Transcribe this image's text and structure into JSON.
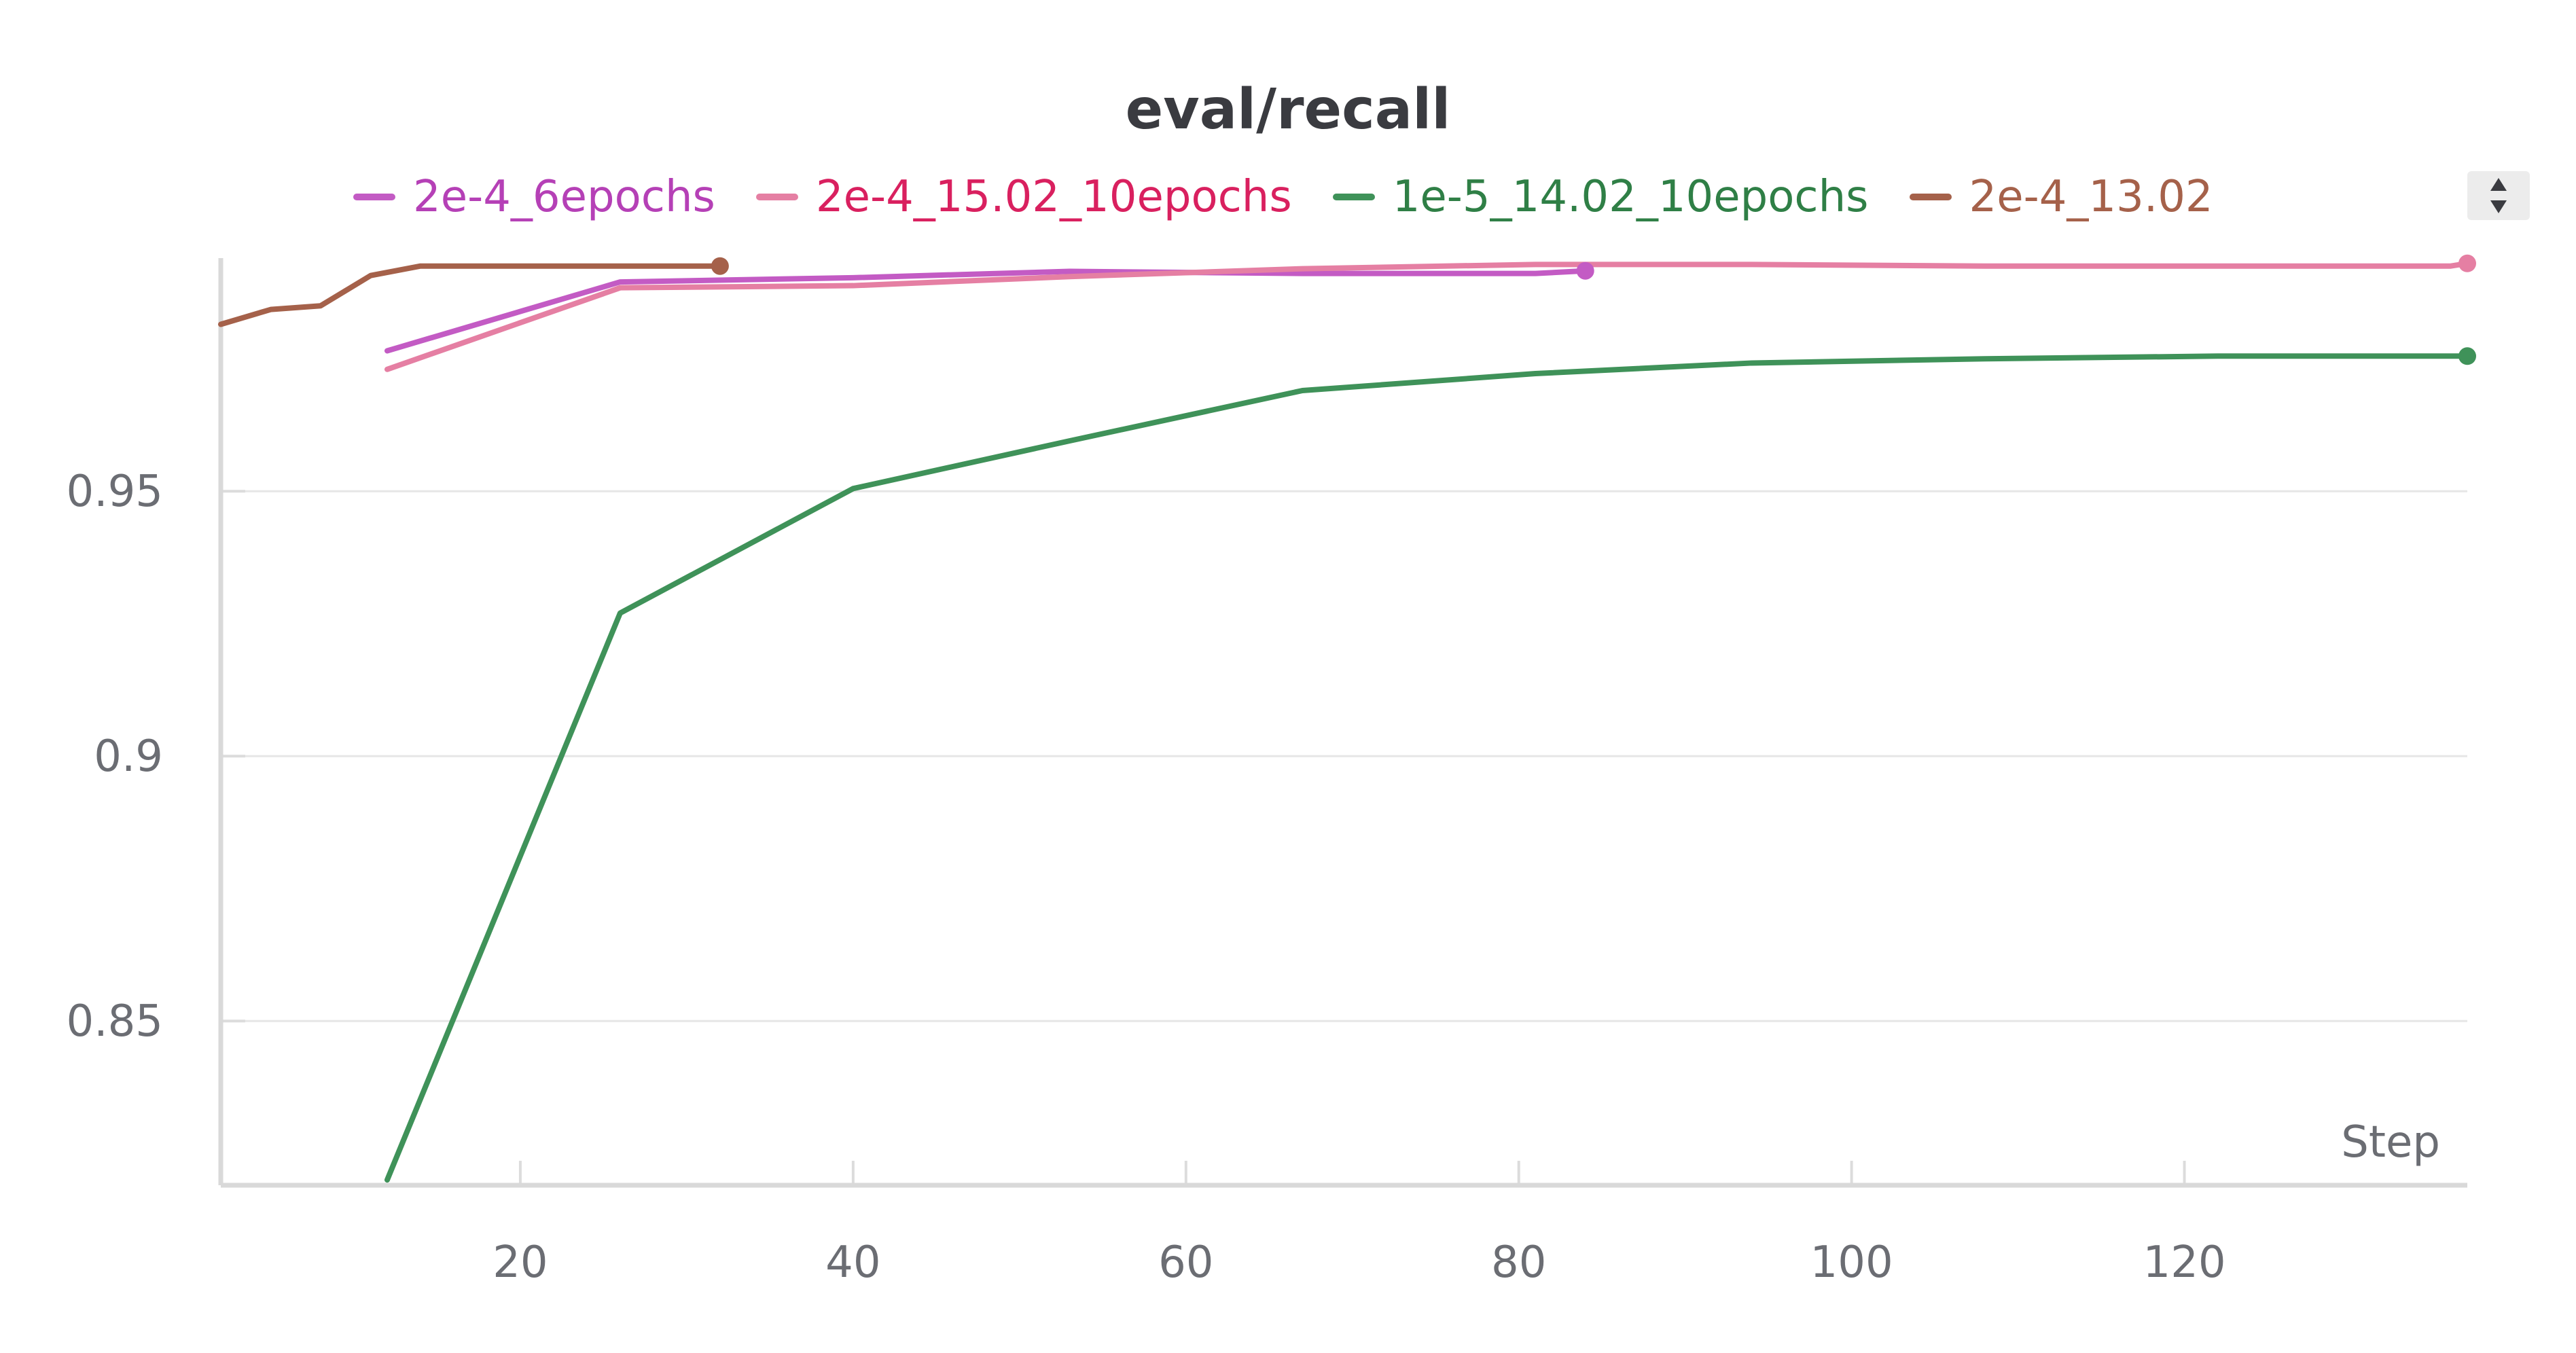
{
  "chart_data": {
    "type": "line",
    "title": "eval/recall",
    "xlabel": "Step",
    "ylabel": "",
    "xlim": [
      2,
      137
    ],
    "ylim": [
      0.819,
      0.994
    ],
    "x_ticks": [
      20,
      40,
      60,
      80,
      100,
      120
    ],
    "y_ticks": [
      0.85,
      0.9,
      0.95
    ],
    "y_tick_labels": [
      "0.85",
      "0.9",
      "0.95"
    ],
    "grid": "horizontal",
    "legend_position": "top",
    "series": [
      {
        "name": "2e-4_6epochs",
        "color": "#c35bc4",
        "label_color": "#b540b6",
        "x": [
          12,
          26,
          40,
          53,
          67,
          81,
          84
        ],
        "y": [
          0.9765,
          0.9895,
          0.9903,
          0.9915,
          0.9911,
          0.9911,
          0.9916
        ]
      },
      {
        "name": "2e-4_15.02_10epochs",
        "color": "#e57fa3",
        "label_color": "#d9205f",
        "x": [
          12,
          26,
          40,
          53,
          67,
          81,
          94,
          108,
          122,
          136,
          137
        ],
        "y": [
          0.973,
          0.9884,
          0.9888,
          0.9905,
          0.992,
          0.9928,
          0.9928,
          0.9925,
          0.9925,
          0.9925,
          0.993
        ]
      },
      {
        "name": "1e-5_14.02_10epochs",
        "color": "#3f9259",
        "label_color": "#2f7f46",
        "x": [
          12,
          26,
          40,
          53,
          67,
          81,
          94,
          108,
          122,
          137
        ],
        "y": [
          0.82,
          0.927,
          0.9505,
          0.9595,
          0.969,
          0.9722,
          0.9742,
          0.975,
          0.9755,
          0.9755
        ]
      },
      {
        "name": "2e-4_13.02",
        "color": "#a5614a",
        "label_color": "#a5614a",
        "x": [
          2,
          5,
          8,
          11,
          14,
          17,
          20,
          23,
          26,
          29,
          32
        ],
        "y": [
          0.9815,
          0.9843,
          0.985,
          0.9907,
          0.9925,
          0.9925,
          0.9925,
          0.9925,
          0.9925,
          0.9925,
          0.9925
        ]
      }
    ]
  },
  "controls": {
    "legend_scroll_icon": "sort-arrows-icon"
  }
}
